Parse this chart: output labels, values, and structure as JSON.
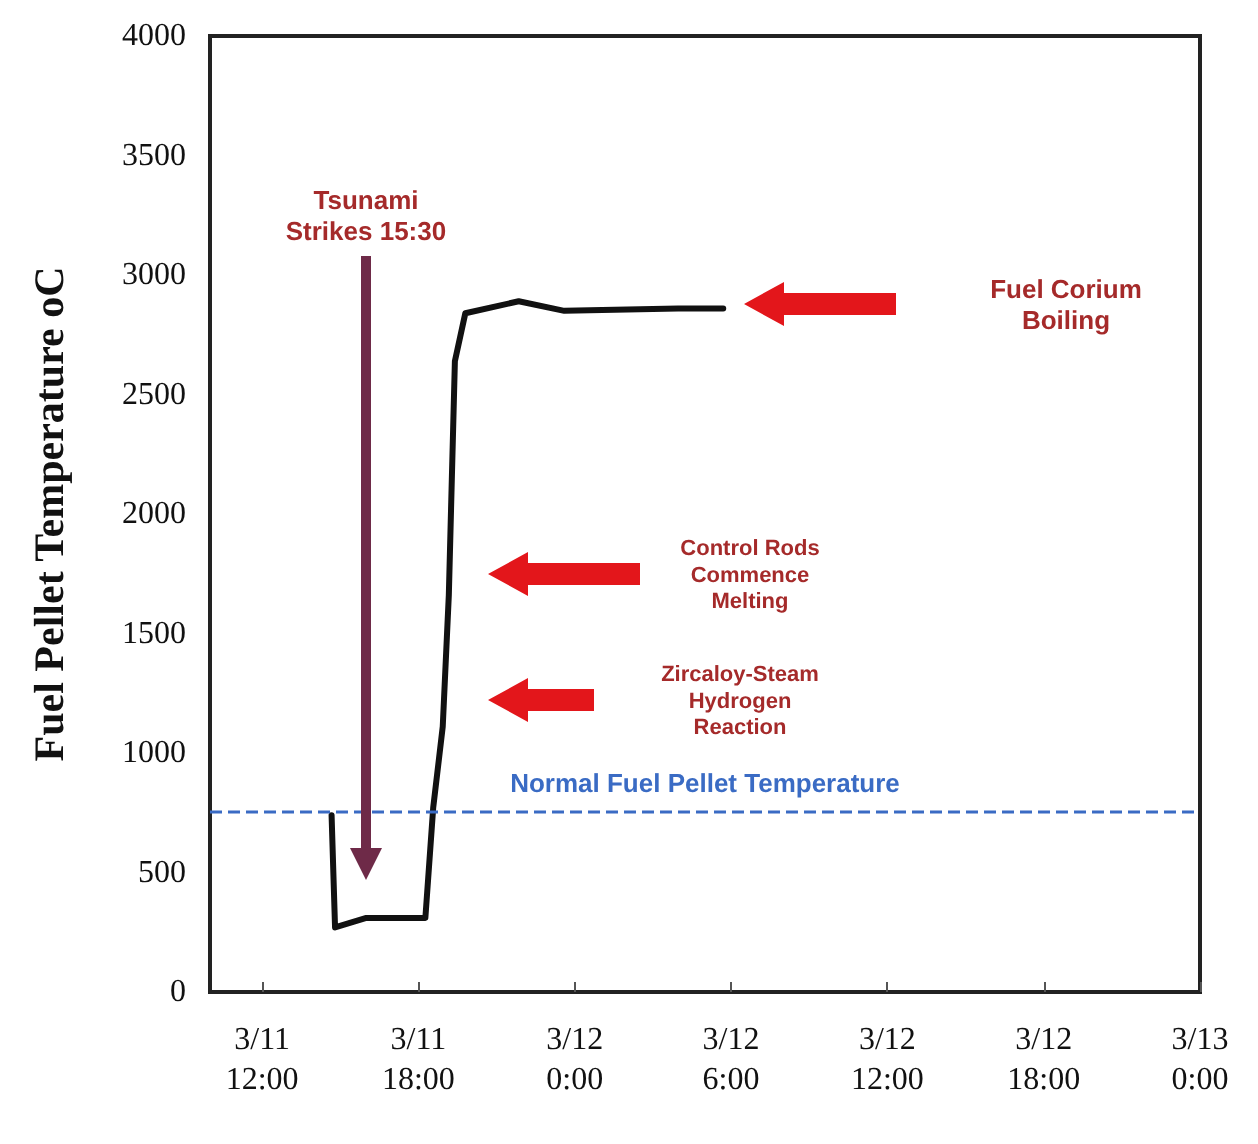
{
  "chart_data": {
    "type": "line",
    "ylabel": "Fuel Pellet Temperature oC",
    "x": [
      "--03-11T14:40",
      "--03-11T14:48",
      "--03-11T16:00",
      "--03-11T18:16",
      "--03-11T18:34",
      "--03-11T18:56",
      "--03-11T19:10",
      "--03-11T19:24",
      "--03-11T19:48",
      "--03-11T21:51",
      "--03-11T23:36",
      "--03-12T03:58",
      "--03-12T05:42"
    ],
    "series": [
      {
        "color": "#111111",
        "values": [
          740,
          270,
          310,
          310,
          770,
          1110,
          1660,
          2640,
          2840,
          2890,
          2850,
          2860,
          2860
        ]
      }
    ],
    "xlim": [
      "--03-11T10:00",
      "--03-13T00:00"
    ],
    "xticks": [
      {
        "value": "--03-11T12:00",
        "label": "3/11\n12:00"
      },
      {
        "value": "--03-11T18:00",
        "label": "3/11\n18:00"
      },
      {
        "value": "--03-12T00:00",
        "label": "3/12\n0:00"
      },
      {
        "value": "--03-12T06:00",
        "label": "3/12\n6:00"
      },
      {
        "value": "--03-12T12:00",
        "label": "3/12\n12:00"
      },
      {
        "value": "--03-12T18:00",
        "label": "3/12\n18:00"
      },
      {
        "value": "--03-13T00:00",
        "label": "3/13\n0:00"
      }
    ],
    "ylim": [
      0,
      4000
    ],
    "yticks": [
      0,
      500,
      1000,
      1500,
      2000,
      2500,
      3000,
      3500,
      4000
    ],
    "ref_lines": [
      {
        "axis": "y",
        "value": 755,
        "label": "Normal Fuel Pellet Temperature",
        "color": "#3a6bc4",
        "line_style": "dashed"
      }
    ],
    "annotations": [
      "Tsunami Strikes 15:30",
      "Fuel Corium Boiling",
      "Control Rods Commence Melting",
      "Zircaloy-Steam Hydrogen Reaction"
    ],
    "grid": false,
    "marker": "none",
    "line_style": "solid"
  }
}
